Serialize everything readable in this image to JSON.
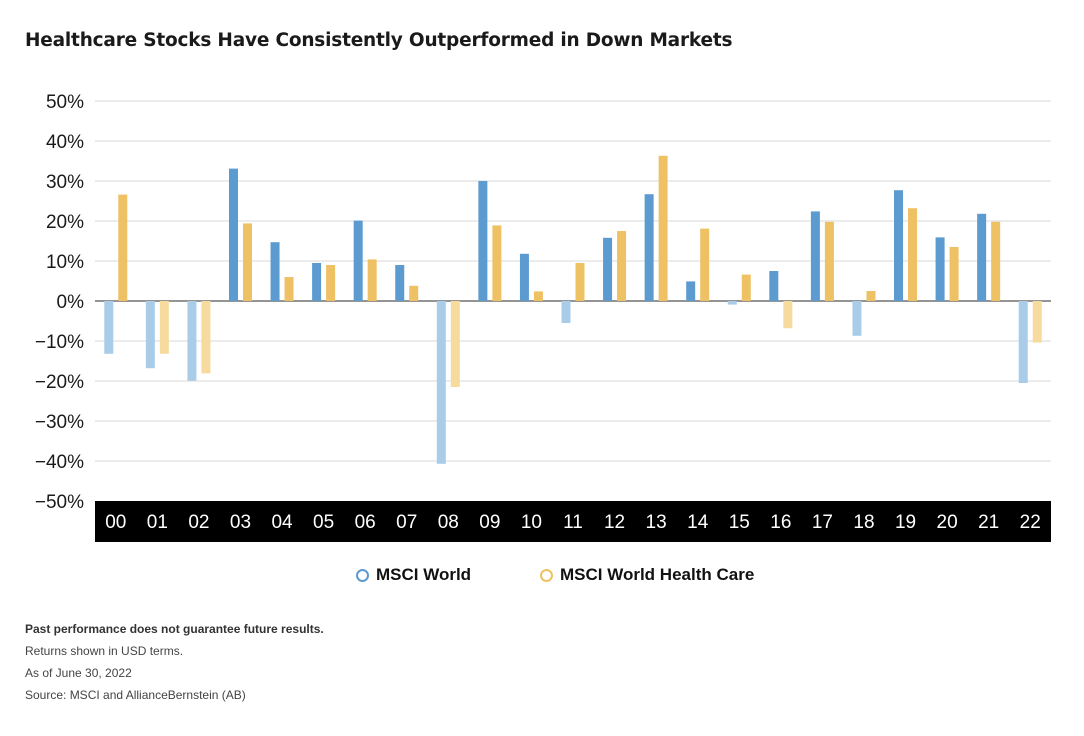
{
  "title": "Healthcare Stocks Have Consistently Outperformed in Down Markets",
  "colors": {
    "world_up": "#5b9bd0",
    "world_down": "#a9cde8",
    "health_up": "#eec164",
    "health_down": "#f6da9e",
    "axis_bar": "#000000",
    "grid": "#d9d9d9"
  },
  "legend": [
    {
      "label": "MSCI World",
      "color": "#5b9bd0"
    },
    {
      "label": "MSCI World Health Care",
      "color": "#eec164"
    }
  ],
  "chart_data": {
    "type": "bar",
    "categories": [
      "00",
      "01",
      "02",
      "03",
      "04",
      "05",
      "06",
      "07",
      "08",
      "09",
      "10",
      "11",
      "12",
      "13",
      "14",
      "15",
      "16",
      "17",
      "18",
      "19",
      "20",
      "21",
      "22"
    ],
    "series": [
      {
        "name": "MSCI World",
        "values": [
          -13.2,
          -16.8,
          -19.9,
          33.1,
          14.7,
          9.5,
          20.1,
          9.0,
          -40.7,
          30.0,
          11.8,
          -5.5,
          15.8,
          26.7,
          4.9,
          -0.9,
          7.5,
          22.4,
          -8.7,
          27.7,
          15.9,
          21.8,
          -20.5
        ]
      },
      {
        "name": "MSCI World Health Care",
        "values": [
          26.6,
          -13.2,
          -18.1,
          19.4,
          6.0,
          9.0,
          10.4,
          3.8,
          -21.5,
          18.9,
          2.4,
          9.5,
          17.5,
          36.3,
          18.1,
          6.6,
          -6.8,
          19.8,
          2.5,
          23.2,
          13.5,
          19.8,
          -10.4
        ]
      }
    ],
    "y_ticks": [
      "50%",
      "40%",
      "30%",
      "20%",
      "10%",
      "0%",
      "−10%",
      "−20%",
      "−30%",
      "−40%",
      "−50%"
    ],
    "ylim": [
      -50,
      50
    ],
    "grid": true,
    "legend_position": "bottom-center"
  },
  "notes": [
    "Past performance does not guarantee future results.",
    "Returns shown in USD terms.",
    "As of June 30, 2022",
    "Source:  MSCI and AllianceBernstein (AB)"
  ]
}
